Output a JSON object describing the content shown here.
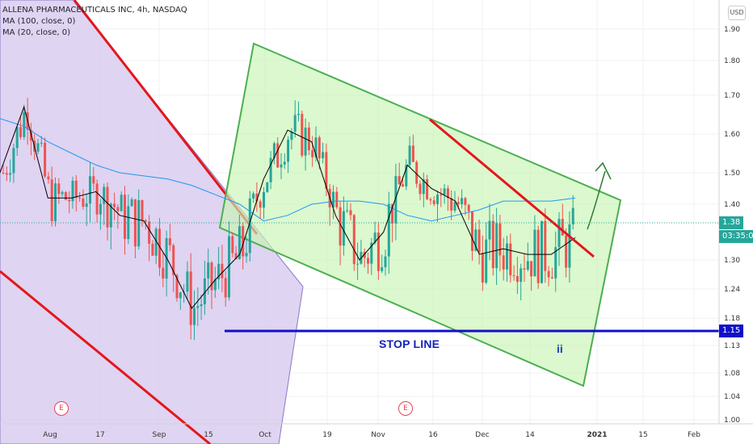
{
  "legend": {
    "title": "ALLENA PHARMACEUTICALS INC, 4h, NASDAQ",
    "ma100": "MA (100, close, 0)",
    "ma20": "MA (20, close, 0)"
  },
  "currency_button": "USD",
  "badges": {
    "last_price": "1.38",
    "countdown": "03:35:07",
    "stop_price": "1.15"
  },
  "annotations": {
    "stop_line": "STOP LINE",
    "wave_label": "ii",
    "earnings_marker": "E"
  },
  "colors": {
    "up": "#26a69a",
    "down": "#ef5350",
    "ma100": "#2196f3",
    "ma20": "#000000",
    "green_channel_fill": "#c8f5b4",
    "green_channel_stroke": "#4caf50",
    "purple_channel_fill": "#d4c6ea",
    "trendline_red": "#e5161b",
    "stop_line": "#1010c8",
    "arrow": "#2e7d32"
  },
  "chart_data": {
    "type": "candlestick",
    "title": "ALLENA PHARMACEUTICALS INC, 4h, NASDAQ",
    "ylim": [
      1.0,
      1.95
    ],
    "y_ticks": [
      "1.90",
      "1.80",
      "1.70",
      "1.60",
      "1.50",
      "1.40",
      "1.30",
      "1.24",
      "1.18",
      "1.13",
      "1.08",
      "1.04",
      "1.00"
    ],
    "x_ticks": [
      "Aug",
      "17",
      "Sep",
      "15",
      "Oct",
      "19",
      "Nov",
      "16",
      "Dec",
      "14",
      "2021",
      "15",
      "Feb"
    ],
    "series": [
      {
        "name": "MA (100, close, 0)",
        "values": [
          1.64,
          1.62,
          1.58,
          1.55,
          1.52,
          1.5,
          1.49,
          1.48,
          1.46,
          1.43,
          1.4,
          1.37,
          1.38,
          1.4,
          1.41,
          1.41,
          1.4,
          1.38,
          1.37,
          1.38,
          1.39,
          1.41,
          1.41,
          1.41,
          1.42
        ]
      },
      {
        "name": "MA (20, close, 0)",
        "values": [
          1.5,
          1.67,
          1.42,
          1.42,
          1.44,
          1.38,
          1.37,
          1.3,
          1.2,
          1.26,
          1.31,
          1.48,
          1.61,
          1.58,
          1.38,
          1.3,
          1.35,
          1.52,
          1.45,
          1.41,
          1.31,
          1.32,
          1.31,
          1.31,
          1.34
        ]
      }
    ],
    "last_price": 1.38,
    "stop_level": 1.15
  }
}
